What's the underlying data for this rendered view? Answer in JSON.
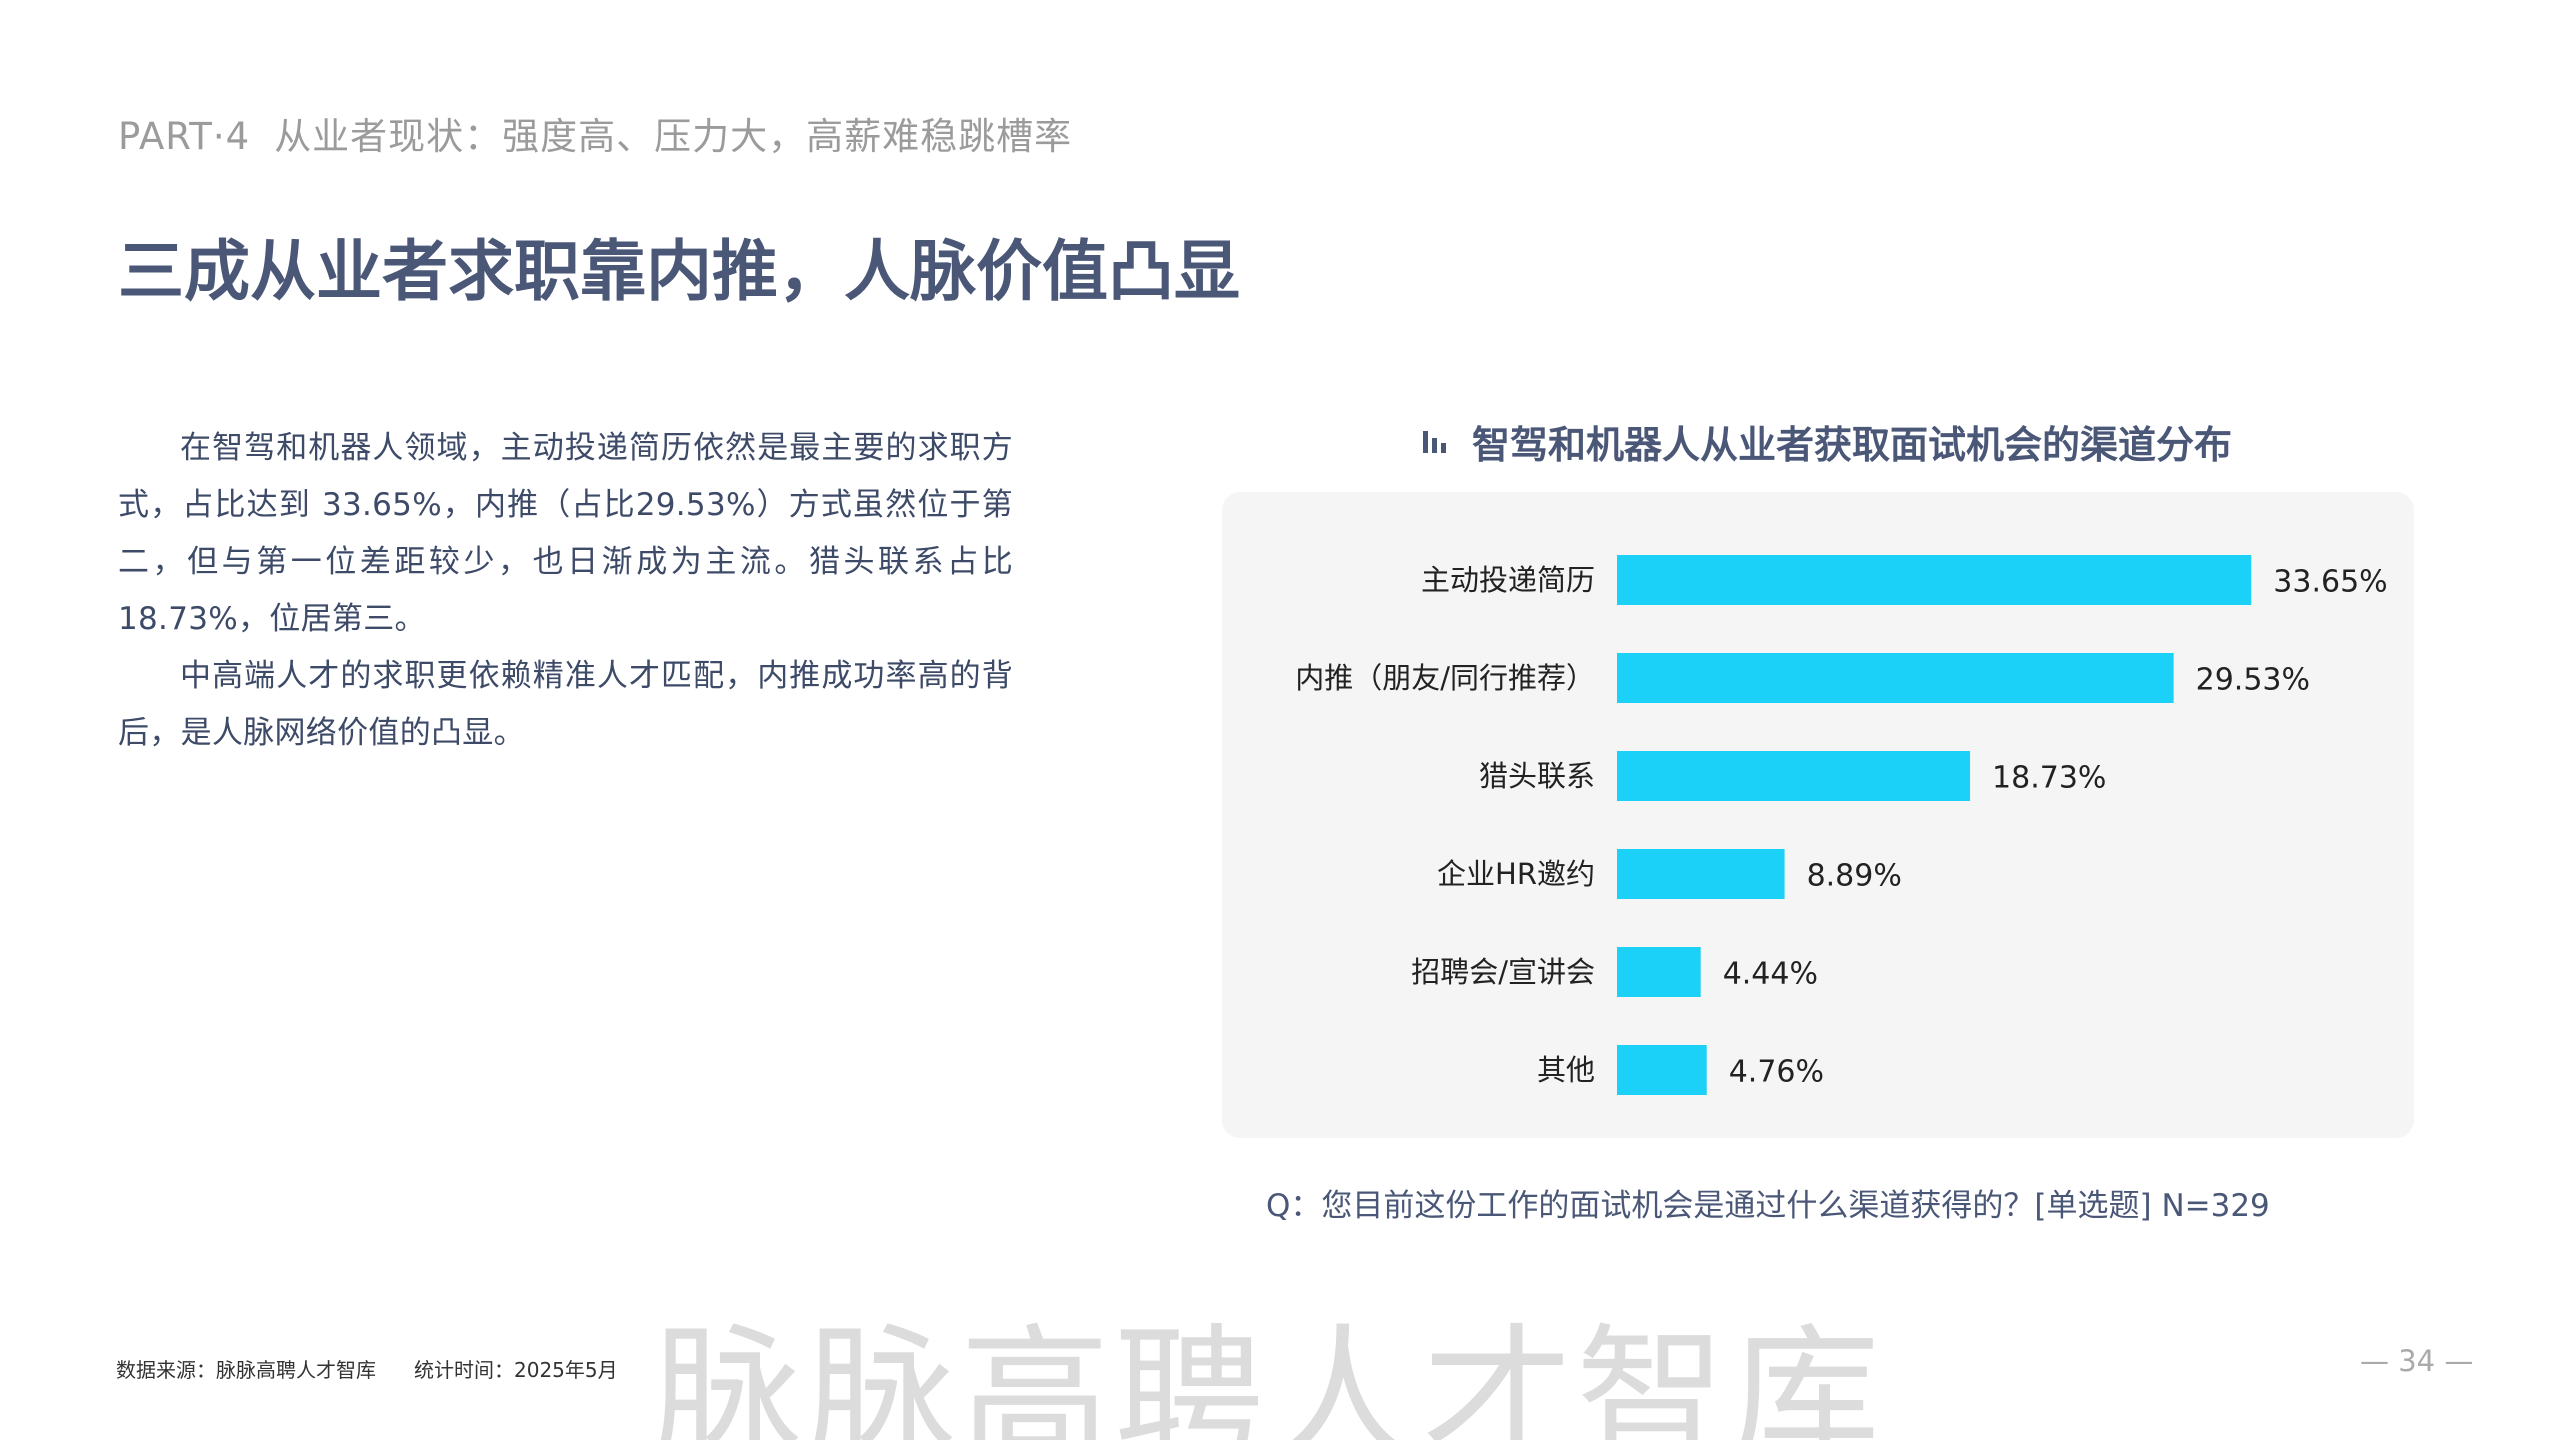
{
  "header": {
    "part_label": "PART·4",
    "section_subtitle": "从业者现状：强度高、压力大，高薪难稳跳槽率"
  },
  "page_title": "三成从业者求职靠内推，人脉价值凸显",
  "body": {
    "paragraph1": "在智驾和机器人领域，主动投递简历依然是最主要的求职方式，占比达到 33.65%，内推（占比29.53%）方式虽然位于第二，但与第一位差距较少，也日渐成为主流。猎头联系占比18.73%，位居第三。",
    "paragraph2": "中高端人才的求职更依赖精准人才匹配，内推成功率高的背后，是人脉网络价值的凸显。"
  },
  "chart_title_icon": "bar-chart-icon",
  "chart_data": {
    "type": "bar",
    "orientation": "horizontal",
    "title": "智驾和机器人从业者获取面试机会的渠道分布",
    "categories": [
      "主动投递简历",
      "内推（朋友/同行推荐）",
      "猎头联系",
      "企业HR邀约",
      "招聘会/宣讲会",
      "其他"
    ],
    "values": [
      33.65,
      29.53,
      18.73,
      8.89,
      4.44,
      4.76
    ],
    "value_labels": [
      "33.65%",
      "29.53%",
      "18.73%",
      "8.89%",
      "4.44%",
      "4.76%"
    ],
    "unit": "%",
    "bar_color": "#1bd1f7",
    "grid": false,
    "legend": "none"
  },
  "question": "Q：您目前这份工作的面试机会是通过什么渠道获得的？[单选题]    N=329",
  "footer": {
    "source": "数据来源：脉脉高聘人才智库",
    "time": "统计时间：2025年5月",
    "page_number": "— 34 —"
  },
  "watermark": "脉脉高聘人才智库",
  "colors": {
    "title": "#4a5777",
    "label_gray": "#9b9b9b",
    "panel_bg": "#f5f5f5",
    "bar": "#1bd1f7"
  }
}
